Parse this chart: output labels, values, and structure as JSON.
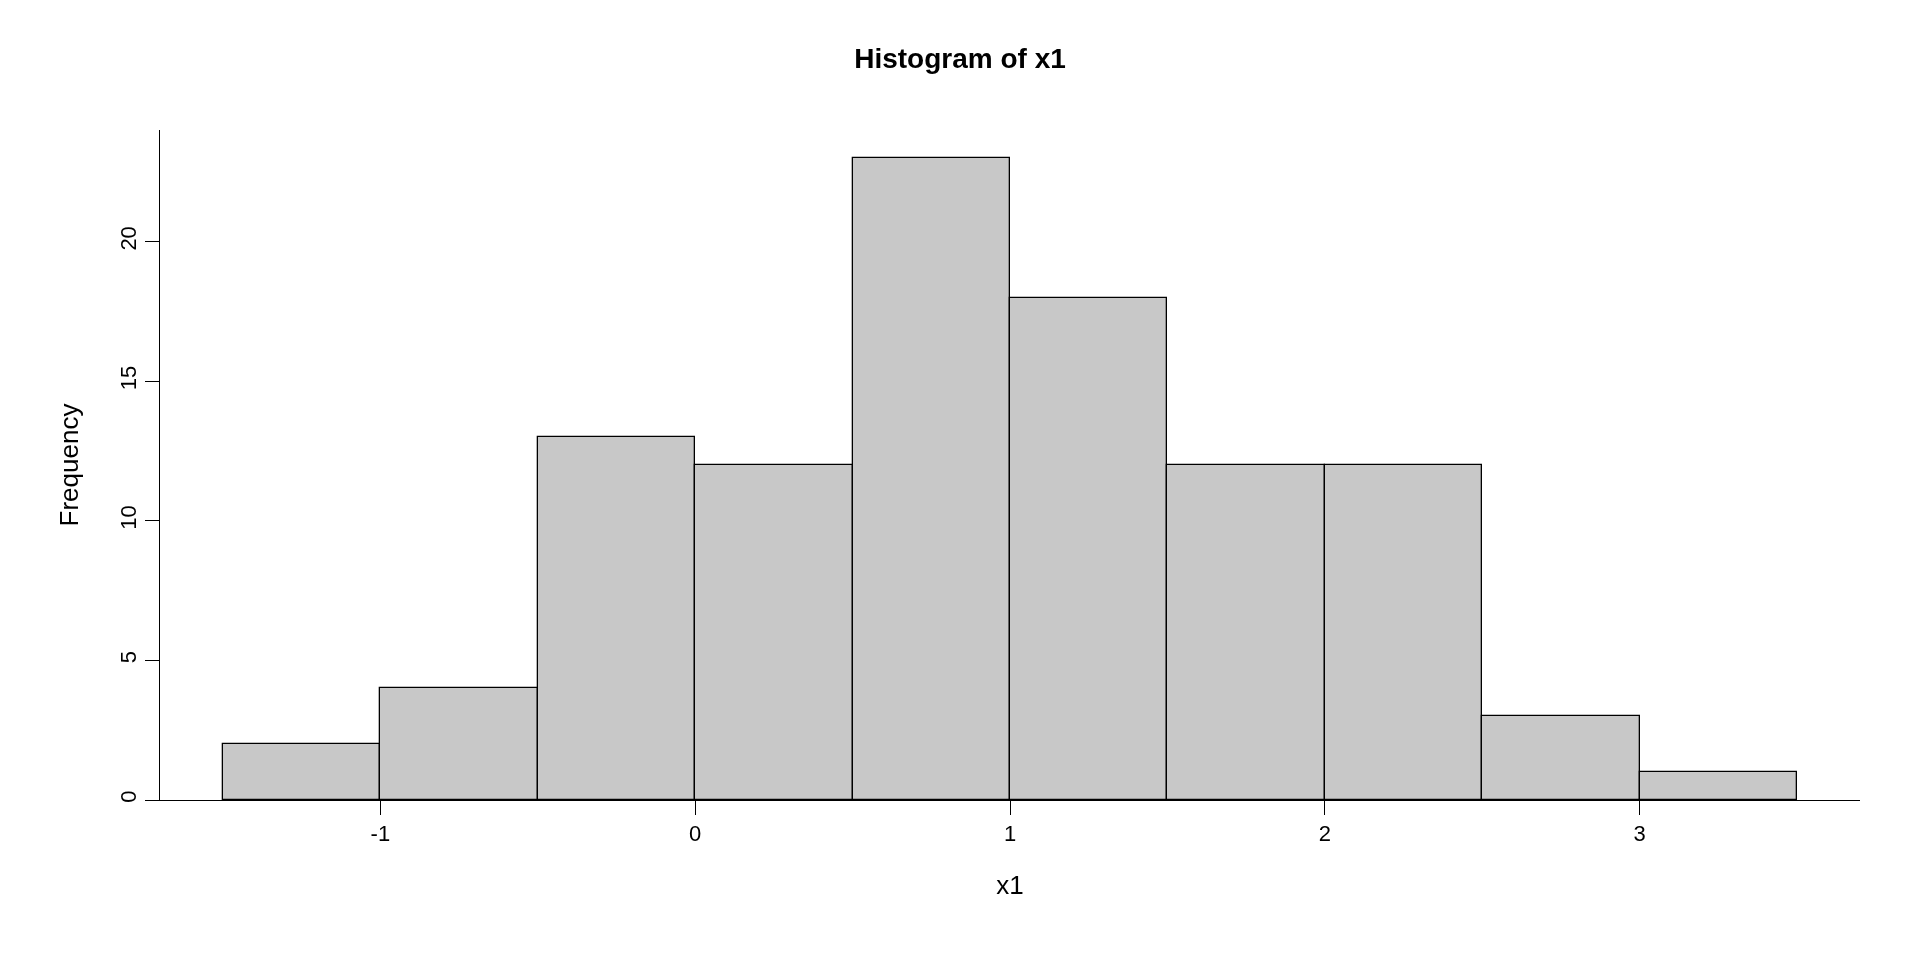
{
  "chart_data": {
    "type": "histogram",
    "title": "Histogram of x1",
    "xlabel": "x1",
    "ylabel": "Frequency",
    "bins": [
      -1.5,
      -1,
      -0.5,
      0,
      0.5,
      1,
      1.5,
      2,
      2.5,
      3,
      3.5
    ],
    "values": [
      2,
      4,
      13,
      12,
      23,
      18,
      12,
      12,
      3,
      1
    ],
    "color": "#c8c8c8",
    "xlim": [
      -1.7,
      3.7
    ],
    "xticks": [
      -1,
      0,
      1,
      2,
      3
    ],
    "ylim": [
      0,
      24
    ],
    "yticks": [
      0,
      5,
      10,
      15,
      20
    ],
    "grid": false
  }
}
